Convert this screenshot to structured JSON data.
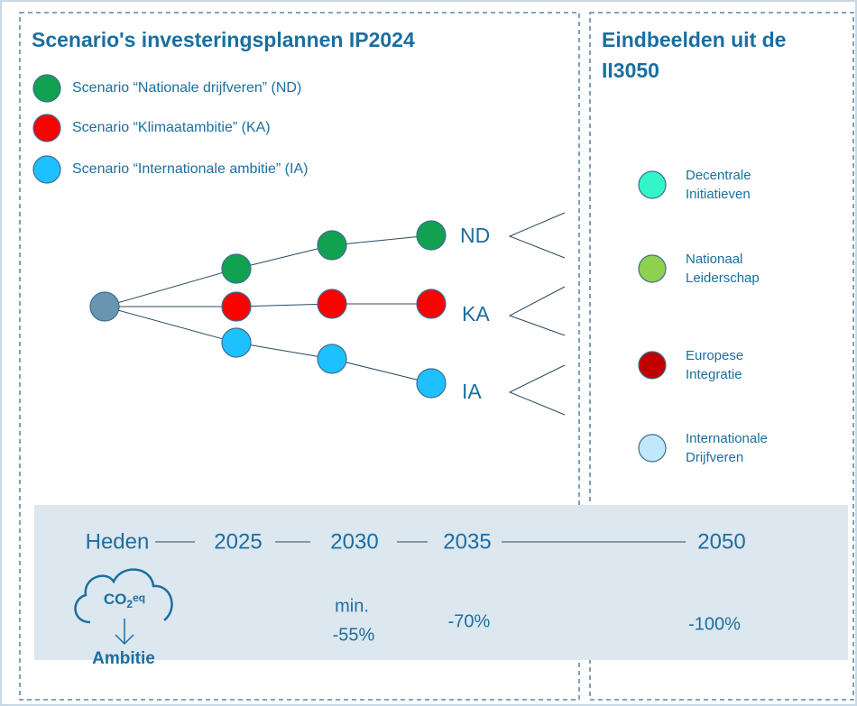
{
  "left_panel": {
    "title": "Scenario's investeringsplannen IP2024",
    "legend": [
      {
        "label": "Scenario “Nationale drijfveren” (ND)",
        "color": "#12a150"
      },
      {
        "label": "Scenario “Klimaatambitie” (KA)",
        "color": "#ff0000"
      },
      {
        "label": "Scenario “Internationale ambitie” (IA)",
        "color": "#1ec0ff"
      }
    ],
    "tree_labels": [
      "ND",
      "KA",
      "IA"
    ]
  },
  "right_panel": {
    "title_lines": [
      "Eindbeelden uit de",
      "II3050"
    ],
    "end_images": [
      {
        "lines": [
          "Decentrale",
          "Initiatieven"
        ],
        "color": "#33f5c8"
      },
      {
        "lines": [
          "Nationaal",
          "Leiderschap"
        ],
        "color": "#8fd14f"
      },
      {
        "lines": [
          "Europese",
          "Integratie"
        ],
        "color": "#c00000"
      },
      {
        "lines": [
          "Internationale",
          "Drijfveren"
        ],
        "color": "#bfe9fb"
      }
    ]
  },
  "timeline": {
    "points": [
      "Heden",
      "2025",
      "2030",
      "2035",
      "2050"
    ],
    "ambitions": [
      [
        "min.",
        "-55%"
      ],
      [
        "-70%"
      ],
      [
        "-100%"
      ]
    ],
    "icon": {
      "label": [
        "CO",
        "2",
        "eq"
      ],
      "caption": "Ambitie"
    }
  }
}
